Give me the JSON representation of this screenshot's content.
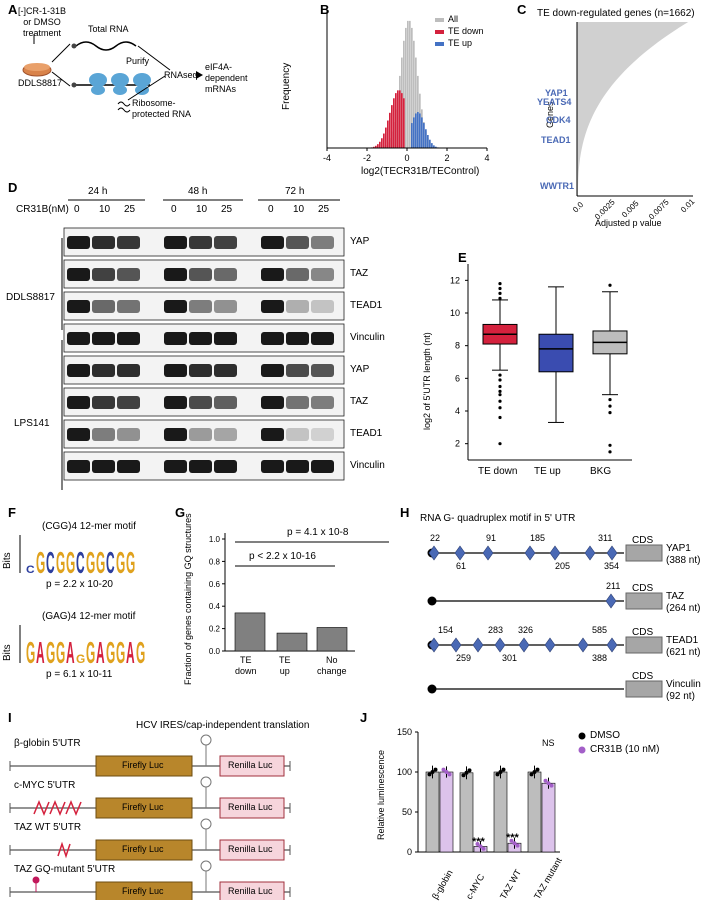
{
  "panel_labels": {
    "a": "A",
    "b": "B",
    "c": "C",
    "d": "D",
    "e": "E",
    "f": "F",
    "g": "G",
    "h": "H",
    "i": "I",
    "j": "J"
  },
  "colors": {
    "grey": "#bdbdbd",
    "red": "#d4213d",
    "blue": "#4472c4",
    "navy": "#2c3e9f",
    "gold": "#b8862b",
    "pink": "#f6d5dc",
    "diamond": "#4a69b5",
    "purple": "#a35fc8"
  },
  "schematic": {
    "treatment": "[-]CR-1-31B\nor DMSO\ntreatment",
    "cell_line": "DDLS8817",
    "total_rna": "Total RNA",
    "purify": "Purify",
    "ribo_rna": "Ribosome-\nprotected RNA",
    "rnaseq": "RNAseq",
    "output": "eIF4A-\ndependent\nmRNAs"
  },
  "histogram": {
    "ylabel": "Frequency",
    "xlabel": "log2(TECR31B/TEControl)",
    "x_ticks": [
      "-4",
      "-2",
      "0",
      "2",
      "4"
    ],
    "legend": [
      "All",
      "TE down",
      "TE up"
    ]
  },
  "te_genes": {
    "title": "TE down-regulated genes (n=1662)",
    "ylabel": "Genes",
    "xlabel": "Adjusted p value",
    "x_ticks": [
      "0.0",
      "0.0025",
      "0.005",
      "0.0075",
      "0.01"
    ],
    "genes": [
      "YAP1",
      "YEATS4",
      "CDK4",
      "TEAD1",
      "WWTR1"
    ]
  },
  "western": {
    "treatment_label": "CR31B(nM)",
    "timepoints": [
      "24 h",
      "48 h",
      "72 h"
    ],
    "doses": [
      "0",
      "10",
      "25",
      "0",
      "10",
      "25",
      "0",
      "10",
      "25"
    ],
    "cell_lines": [
      "DDLS8817",
      "LPS141"
    ],
    "proteins": [
      "YAP",
      "TAZ",
      "TEAD1",
      "Vinculin",
      "YAP",
      "TAZ",
      "TEAD1",
      "Vinculin"
    ]
  },
  "utr_box": {
    "ylabel": "log2 of 5'UTR length (nt)",
    "y_ticks": [
      "2",
      "4",
      "6",
      "8",
      "10",
      "12"
    ],
    "categories": [
      "TE down",
      "TE up",
      "BKG"
    ]
  },
  "motifs": {
    "m1_title": "(CGG)4 12-mer motif",
    "m1_seq": "CGCGGCGGCGG",
    "m1_p": "p = 2.2 x 10-20",
    "m2_title": "(GAG)4 12-mer motif",
    "m2_seq": "GAGGAGGAGGAG",
    "m2_p": "p = 6.1 x 10-11",
    "bits": "Bits"
  },
  "gq_bar": {
    "ylabel": "Fraction of genes containing GQ structures",
    "p1": "p = 4.1 x 10-8",
    "p2": "p < 2.2 x 10-16",
    "y_ticks": [
      "0.0",
      "0.2",
      "0.4",
      "0.6",
      "0.8",
      "1.0"
    ],
    "categories": [
      "TE\ndown",
      "TE\nup",
      "No\nchange"
    ]
  },
  "gquad": {
    "title": "RNA G- quadruplex motif in 5' UTR",
    "cds": "CDS",
    "genes": [
      {
        "name": "YAP1",
        "len": "(388 nt)",
        "top": [
          "22",
          "91",
          "185",
          "311"
        ],
        "bottom": [
          "61",
          "205",
          "354"
        ]
      },
      {
        "name": "TAZ",
        "len": "(264 nt)",
        "top": [
          "211"
        ],
        "bottom": []
      },
      {
        "name": "TEAD1",
        "len": "(621 nt)",
        "top": [
          "154",
          "283",
          "326",
          "585"
        ],
        "bottom": [
          "259",
          "301",
          "388"
        ]
      },
      {
        "name": "Vinculin",
        "len": "(92 nt)",
        "top": [],
        "bottom": []
      }
    ]
  },
  "reporters": {
    "header": "HCV IRES/cap-independent translation",
    "constructs": [
      "β-globin 5'UTR",
      "c-MYC 5'UTR",
      "TAZ WT 5'UTR",
      "TAZ GQ-mutant 5'UTR"
    ],
    "firefly": "Firefly Luc",
    "renilla": "Renilla Luc"
  },
  "luminescence": {
    "ylabel": "Relative luminescence",
    "y_ticks": [
      "0",
      "50",
      "100",
      "150"
    ],
    "legend": [
      "DMSO",
      "CR31B (10 nM)"
    ],
    "categories": [
      "β-globin",
      "c-MYC",
      "TAZ WT",
      "TAZ mutant"
    ],
    "annotations": [
      "***",
      "***",
      "NS"
    ]
  },
  "chart_data": [
    {
      "type": "bar",
      "title": "",
      "ylabel": "Fraction of genes containing GQ structures",
      "categories": [
        "TE down",
        "TE up",
        "No change"
      ],
      "values": [
        0.34,
        0.16,
        0.21
      ],
      "ylim": [
        0,
        1.0
      ]
    },
    {
      "type": "bar",
      "title": "",
      "ylabel": "Relative luminescence",
      "categories": [
        "β-globin",
        "c-MYC",
        "TAZ WT",
        "TAZ mutant"
      ],
      "series": [
        {
          "name": "DMSO",
          "values": [
            100,
            99,
            100,
            100
          ]
        },
        {
          "name": "CR31B (10 nM)",
          "values": [
            100,
            7,
            11,
            86
          ]
        }
      ],
      "ylim": [
        0,
        150
      ]
    },
    {
      "type": "box",
      "ylabel": "log2 of 5'UTR length (nt)",
      "categories": [
        "TE down",
        "TE up",
        "BKG"
      ],
      "median": [
        8.7,
        7.8,
        8.2
      ],
      "q1": [
        8.1,
        6.4,
        7.5
      ],
      "q3": [
        9.3,
        8.7,
        8.9
      ],
      "whisker_low": [
        6.5,
        3.3,
        5.0
      ],
      "whisker_high": [
        10.8,
        11.6,
        11.3
      ],
      "ylim": [
        1,
        13
      ]
    }
  ]
}
